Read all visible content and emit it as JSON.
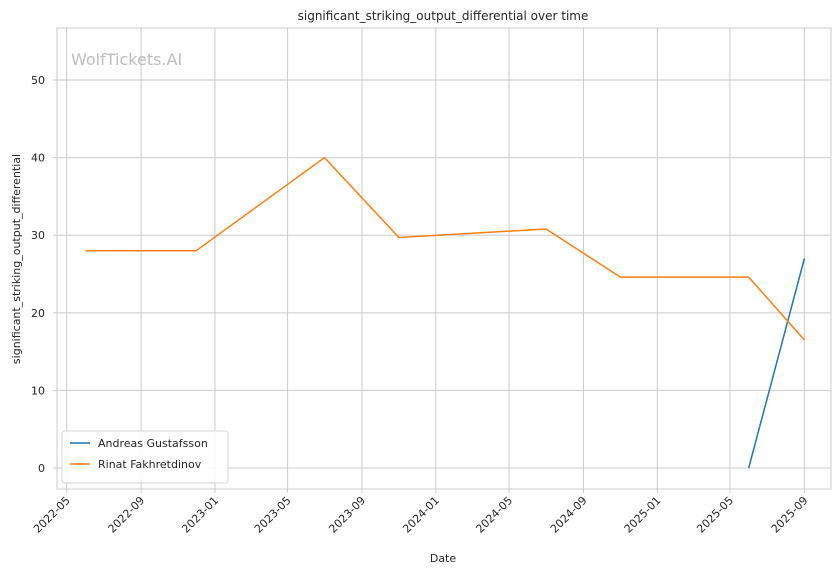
{
  "watermark": "WolfTickets.AI",
  "chart_data": {
    "type": "line",
    "title": "significant_striking_output_differential over time",
    "xlabel": "Date",
    "ylabel": "significant_striking_output_differential",
    "x_ticks": [
      "2022-05",
      "2022-09",
      "2023-01",
      "2023-05",
      "2023-09",
      "2024-01",
      "2024-05",
      "2024-09",
      "2025-01",
      "2025-05",
      "2025-09"
    ],
    "y_ticks": [
      0,
      10,
      20,
      30,
      40,
      50
    ],
    "xlim": [
      "2022-04-15",
      "2025-10-15"
    ],
    "ylim": [
      -2.7,
      56.7
    ],
    "grid": true,
    "legend_position": "lower-left",
    "series": [
      {
        "name": "Andreas Gustafsson",
        "color": "#1f77b4",
        "points": [
          {
            "x": "2025-06-01",
            "y": 0
          },
          {
            "x": "2025-09-01",
            "y": 27
          }
        ]
      },
      {
        "name": "Rinat Fakhretdinov",
        "color": "#ff7f0e",
        "points": [
          {
            "x": "2022-06-01",
            "y": 28
          },
          {
            "x": "2022-12-01",
            "y": 28
          },
          {
            "x": "2023-07-01",
            "y": 40
          },
          {
            "x": "2023-11-01",
            "y": 29.7
          },
          {
            "x": "2024-07-01",
            "y": 30.8
          },
          {
            "x": "2024-11-01",
            "y": 24.6
          },
          {
            "x": "2025-06-01",
            "y": 24.6
          },
          {
            "x": "2025-09-01",
            "y": 16.5
          }
        ]
      }
    ]
  }
}
